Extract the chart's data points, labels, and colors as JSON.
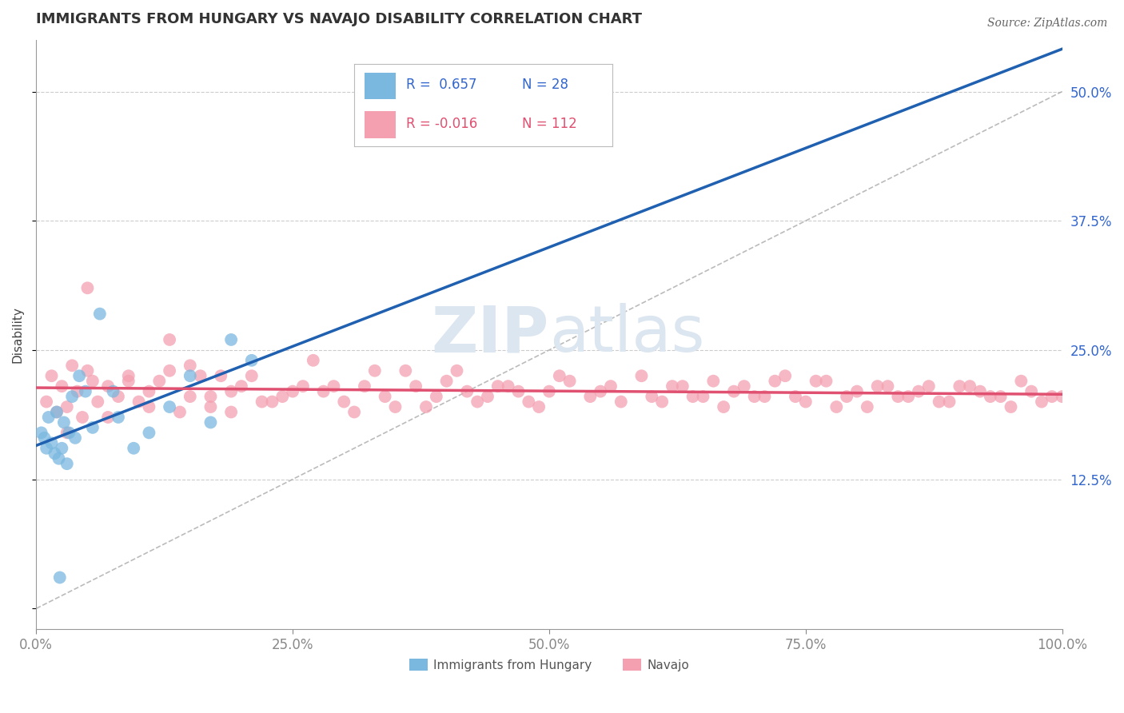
{
  "title": "IMMIGRANTS FROM HUNGARY VS NAVAJO DISABILITY CORRELATION CHART",
  "source": "Source: ZipAtlas.com",
  "ylabel_label": "Disability",
  "x_ticks": [
    0.0,
    25.0,
    50.0,
    75.0,
    100.0
  ],
  "x_tick_labels": [
    "0.0%",
    "25.0%",
    "50.0%",
    "75.0%",
    "100.0%"
  ],
  "y_ticks": [
    0.0,
    12.5,
    25.0,
    37.5,
    50.0
  ],
  "y_tick_labels": [
    "",
    "12.5%",
    "25.0%",
    "37.5%",
    "50.0%"
  ],
  "xlim": [
    0,
    100
  ],
  "ylim": [
    -2,
    55
  ],
  "blue_color": "#7ab8e0",
  "pink_color": "#f4a0b0",
  "blue_line_color": "#2060b0",
  "pink_line_color": "#e05070",
  "grid_color": "#cccccc",
  "text_color": "#3366cc",
  "watermark_color": "#dce6f0",
  "title_fontsize": 13,
  "axis_label_fontsize": 11,
  "tick_fontsize": 12,
  "blue_scatter_x": [
    0.5,
    0.8,
    1.0,
    1.2,
    1.5,
    1.8,
    2.0,
    2.2,
    2.5,
    2.7,
    3.0,
    3.2,
    3.5,
    3.8,
    4.2,
    4.8,
    5.5,
    6.2,
    7.5,
    8.0,
    9.5,
    11.0,
    13.0,
    15.0,
    17.0,
    19.0,
    21.0,
    2.3
  ],
  "blue_scatter_y": [
    17.0,
    16.5,
    15.5,
    18.5,
    16.0,
    15.0,
    19.0,
    14.5,
    15.5,
    18.0,
    14.0,
    17.0,
    20.5,
    16.5,
    22.5,
    21.0,
    17.5,
    28.5,
    21.0,
    18.5,
    15.5,
    17.0,
    19.5,
    22.5,
    18.0,
    26.0,
    24.0,
    3.0
  ],
  "pink_scatter_x": [
    1.0,
    1.5,
    2.0,
    2.5,
    3.0,
    3.5,
    4.0,
    4.5,
    5.0,
    5.5,
    6.0,
    7.0,
    8.0,
    9.0,
    10.0,
    11.0,
    12.0,
    13.0,
    14.0,
    15.0,
    16.0,
    17.0,
    18.0,
    19.0,
    20.0,
    22.0,
    24.0,
    26.0,
    28.0,
    30.0,
    32.0,
    34.0,
    36.0,
    38.0,
    40.0,
    42.0,
    44.0,
    46.0,
    48.0,
    50.0,
    52.0,
    54.0,
    56.0,
    60.0,
    62.0,
    64.0,
    66.0,
    68.0,
    70.0,
    72.0,
    74.0,
    76.0,
    78.0,
    80.0,
    82.0,
    84.0,
    86.0,
    88.0,
    90.0,
    92.0,
    94.0,
    96.0,
    98.0,
    100.0,
    3.0,
    5.0,
    7.0,
    9.0,
    11.0,
    13.0,
    15.0,
    17.0,
    19.0,
    21.0,
    23.0,
    25.0,
    27.0,
    29.0,
    31.0,
    33.0,
    35.0,
    37.0,
    39.0,
    41.0,
    43.0,
    45.0,
    47.0,
    49.0,
    51.0,
    55.0,
    57.0,
    59.0,
    61.0,
    63.0,
    65.0,
    67.0,
    69.0,
    71.0,
    73.0,
    75.0,
    77.0,
    79.0,
    81.0,
    83.0,
    85.0,
    87.0,
    89.0,
    91.0,
    93.0,
    95.0,
    97.0,
    99.0
  ],
  "pink_scatter_y": [
    20.0,
    22.5,
    19.0,
    21.5,
    19.5,
    23.5,
    21.0,
    18.5,
    23.0,
    22.0,
    20.0,
    21.5,
    20.5,
    22.0,
    20.0,
    21.0,
    22.0,
    23.0,
    19.0,
    20.5,
    22.5,
    19.5,
    22.5,
    21.0,
    21.5,
    20.0,
    20.5,
    21.5,
    21.0,
    20.0,
    21.5,
    20.5,
    23.0,
    19.5,
    22.0,
    21.0,
    20.5,
    21.5,
    20.0,
    21.0,
    22.0,
    20.5,
    21.5,
    20.5,
    21.5,
    20.5,
    22.0,
    21.0,
    20.5,
    22.0,
    20.5,
    22.0,
    19.5,
    21.0,
    21.5,
    20.5,
    21.0,
    20.0,
    21.5,
    21.0,
    20.5,
    22.0,
    20.0,
    20.5,
    17.0,
    31.0,
    18.5,
    22.5,
    19.5,
    26.0,
    23.5,
    20.5,
    19.0,
    22.5,
    20.0,
    21.0,
    24.0,
    21.5,
    19.0,
    23.0,
    19.5,
    21.5,
    20.5,
    23.0,
    20.0,
    21.5,
    21.0,
    19.5,
    22.5,
    21.0,
    20.0,
    22.5,
    20.0,
    21.5,
    20.5,
    19.5,
    21.5,
    20.5,
    22.5,
    20.0,
    22.0,
    20.5,
    19.5,
    21.5,
    20.5,
    21.5,
    20.0,
    21.5,
    20.5,
    19.5,
    21.0,
    20.5
  ]
}
